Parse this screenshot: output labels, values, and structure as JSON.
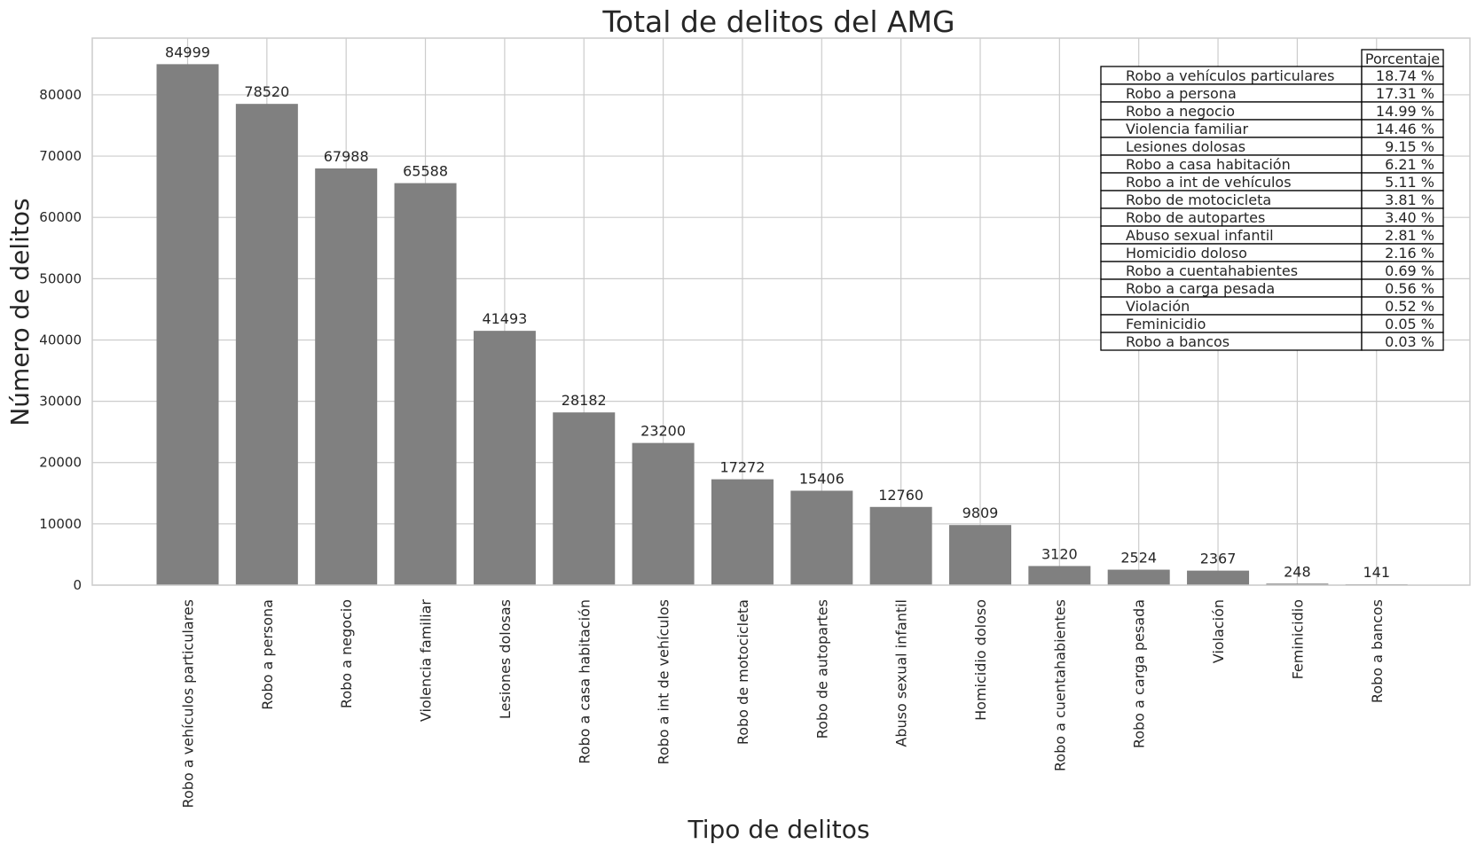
{
  "chart_data": {
    "type": "bar",
    "title": "Total de delitos del AMG",
    "xlabel": "Tipo de delitos",
    "ylabel": "Número de delitos",
    "ylim": [
      0,
      89249
    ],
    "yticks": [
      0,
      10000,
      20000,
      30000,
      40000,
      50000,
      60000,
      70000,
      80000
    ],
    "grid": true,
    "bar_color": "#808080",
    "categories": [
      "Robo a vehículos particulares",
      "Robo a persona",
      "Robo a negocio",
      "Violencia familiar",
      "Lesiones dolosas",
      "Robo a casa habitación",
      "Robo a int de vehículos",
      "Robo de motocicleta",
      "Robo de autopartes",
      "Abuso sexual infantil",
      "Homicidio doloso",
      "Robo a cuentahabientes",
      "Robo a carga pesada",
      "Violación",
      "Feminicidio",
      "Robo a bancos"
    ],
    "values": [
      84999,
      78520,
      67988,
      65588,
      41493,
      28182,
      23200,
      17272,
      15406,
      12760,
      9809,
      3120,
      2524,
      2367,
      248,
      141
    ],
    "table": {
      "header": "Porcentaje",
      "rows": [
        {
          "label": "Robo a vehículos particulares",
          "value": "18.74 %"
        },
        {
          "label": "Robo a persona",
          "value": "17.31 %"
        },
        {
          "label": "Robo a negocio",
          "value": "14.99 %"
        },
        {
          "label": "Violencia familiar",
          "value": "14.46 %"
        },
        {
          "label": "Lesiones dolosas",
          "value": "9.15 %"
        },
        {
          "label": "Robo a casa habitación",
          "value": "6.21 %"
        },
        {
          "label": "Robo a int de vehículos",
          "value": "5.11 %"
        },
        {
          "label": "Robo de motocicleta",
          "value": "3.81 %"
        },
        {
          "label": "Robo de autopartes",
          "value": "3.40 %"
        },
        {
          "label": "Abuso sexual infantil",
          "value": "2.81 %"
        },
        {
          "label": "Homicidio doloso",
          "value": "2.16 %"
        },
        {
          "label": "Robo a cuentahabientes",
          "value": "0.69 %"
        },
        {
          "label": "Robo a carga pesada",
          "value": "0.56 %"
        },
        {
          "label": "Violación",
          "value": "0.52 %"
        },
        {
          "label": "Feminicidio",
          "value": "0.05 %"
        },
        {
          "label": "Robo a bancos",
          "value": "0.03 %"
        }
      ]
    }
  }
}
